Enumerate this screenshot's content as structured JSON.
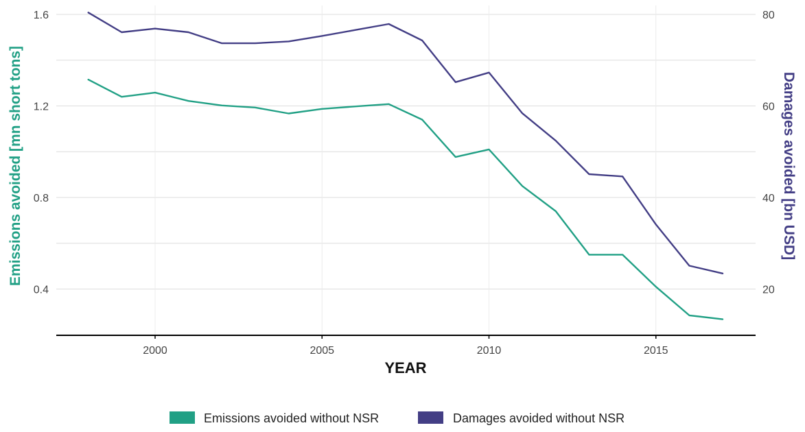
{
  "chart_data": {
    "type": "line",
    "xlabel": "YEAR",
    "x": [
      1998,
      1999,
      2000,
      2001,
      2002,
      2003,
      2004,
      2005,
      2006,
      2007,
      2008,
      2009,
      2010,
      2011,
      2012,
      2013,
      2014,
      2015,
      2016,
      2017
    ],
    "x_ticks": [
      2000,
      2005,
      2010,
      2015
    ],
    "xlim": [
      1995.6,
      2018.3
    ],
    "y_left": {
      "label": "Emissions avoided [mn short tons]",
      "ticks": [
        "0.4",
        "0.8",
        "1.2",
        "1.6"
      ],
      "lim": [
        0.2,
        1.6
      ],
      "color": "#21a085"
    },
    "y_right": {
      "label": "Damages avoided [bn USD]",
      "ticks": [
        "20",
        "40",
        "60",
        "80"
      ],
      "lim": [
        10,
        80
      ],
      "color": "#433e85"
    },
    "series": [
      {
        "name": "Emissions avoided without NSR",
        "axis": "left",
        "color": "#21a085",
        "values": [
          1.315,
          1.24,
          1.258,
          1.222,
          1.202,
          1.193,
          1.167,
          1.187,
          1.198,
          1.208,
          1.14,
          0.977,
          1.01,
          0.85,
          0.74,
          0.55,
          0.55,
          0.41,
          0.285,
          0.268
        ]
      },
      {
        "name": "Damages avoided without NSR",
        "axis": "right",
        "color": "#433e85",
        "values": [
          80.4,
          76.1,
          76.9,
          76.1,
          73.7,
          73.7,
          74.1,
          75.3,
          76.6,
          77.9,
          74.3,
          65.2,
          67.3,
          58.4,
          52.4,
          45.1,
          44.6,
          34.1,
          25.1,
          23.4
        ]
      }
    ],
    "grid": true,
    "legend_position": "bottom"
  }
}
